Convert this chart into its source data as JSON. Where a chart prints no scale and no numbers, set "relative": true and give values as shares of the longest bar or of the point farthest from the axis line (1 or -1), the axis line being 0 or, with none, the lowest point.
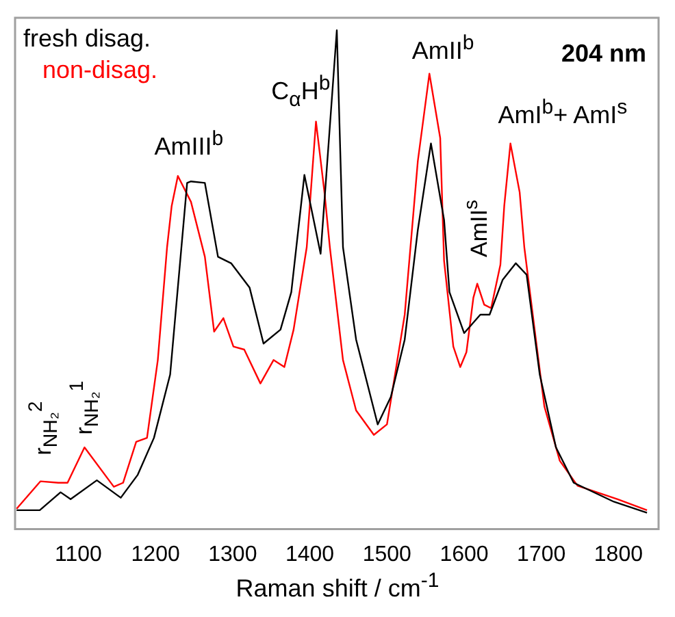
{
  "chart_data": {
    "type": "line",
    "relative": true,
    "xlabel": "Raman shift / cm$^{-1}$",
    "xlim": [
      1018,
      1852
    ],
    "xticks": [
      1100,
      1200,
      1300,
      1400,
      1500,
      1600,
      1700,
      1800
    ],
    "tick_labels": "x",
    "grid": false,
    "legend": "top left",
    "series": [
      {
        "name": "fresh disag.",
        "color": "#000000",
        "x": [
          1020,
          1050,
          1077,
          1090,
          1124,
          1155,
          1177,
          1198,
          1219,
          1241,
          1246,
          1264,
          1281,
          1298,
          1322,
          1340,
          1362,
          1376,
          1393,
          1414,
          1435,
          1443,
          1460,
          1488,
          1505,
          1523,
          1540,
          1557,
          1574,
          1581,
          1600,
          1621,
          1633,
          1650,
          1667,
          1681,
          1698,
          1719,
          1742,
          1794,
          1837
        ],
        "values": [
          0.038,
          0.038,
          0.074,
          0.06,
          0.098,
          0.063,
          0.109,
          0.183,
          0.31,
          0.694,
          0.697,
          0.694,
          0.546,
          0.533,
          0.484,
          0.372,
          0.4,
          0.475,
          0.71,
          0.552,
          1.0,
          0.565,
          0.38,
          0.21,
          0.265,
          0.38,
          0.6,
          0.773,
          0.62,
          0.475,
          0.393,
          0.43,
          0.43,
          0.5,
          0.533,
          0.51,
          0.31,
          0.164,
          0.093,
          0.055,
          0.033
        ]
      },
      {
        "name": "non-disag.",
        "color": "#ff0000",
        "x": [
          1020,
          1051,
          1074,
          1086,
          1108,
          1146,
          1158,
          1175,
          1189,
          1203,
          1215,
          1221,
          1229,
          1246,
          1264,
          1276,
          1288,
          1301,
          1315,
          1336,
          1353,
          1367,
          1379,
          1396,
          1408,
          1419,
          1426,
          1443,
          1460,
          1483,
          1500,
          1523,
          1540,
          1555,
          1569,
          1574,
          1586,
          1595,
          1603,
          1612,
          1617,
          1626,
          1635,
          1647,
          1652,
          1660,
          1672,
          1678,
          1693,
          1704,
          1724,
          1747,
          1799,
          1837
        ],
        "values": [
          0.041,
          0.096,
          0.093,
          0.093,
          0.164,
          0.085,
          0.093,
          0.175,
          0.183,
          0.339,
          0.565,
          0.648,
          0.708,
          0.656,
          0.546,
          0.396,
          0.423,
          0.366,
          0.36,
          0.292,
          0.339,
          0.325,
          0.4,
          0.565,
          0.817,
          0.675,
          0.565,
          0.339,
          0.238,
          0.189,
          0.21,
          0.43,
          0.738,
          0.913,
          0.784,
          0.538,
          0.366,
          0.325,
          0.355,
          0.464,
          0.492,
          0.45,
          0.443,
          0.53,
          0.648,
          0.773,
          0.675,
          0.565,
          0.38,
          0.246,
          0.137,
          0.087,
          0.06,
          0.038
        ]
      }
    ],
    "annotations": [
      "204 nm",
      "AmIII$^{b}$",
      "C$_{α}$H$^{b}$",
      "AmII$^{b}$",
      "AmI$^{b}$+ AmI$^{s}$",
      "AmII$^{s}$",
      "r$_{NH₂}$$^{2}$",
      "r$_{NH₂}$$^{1}$"
    ]
  }
}
